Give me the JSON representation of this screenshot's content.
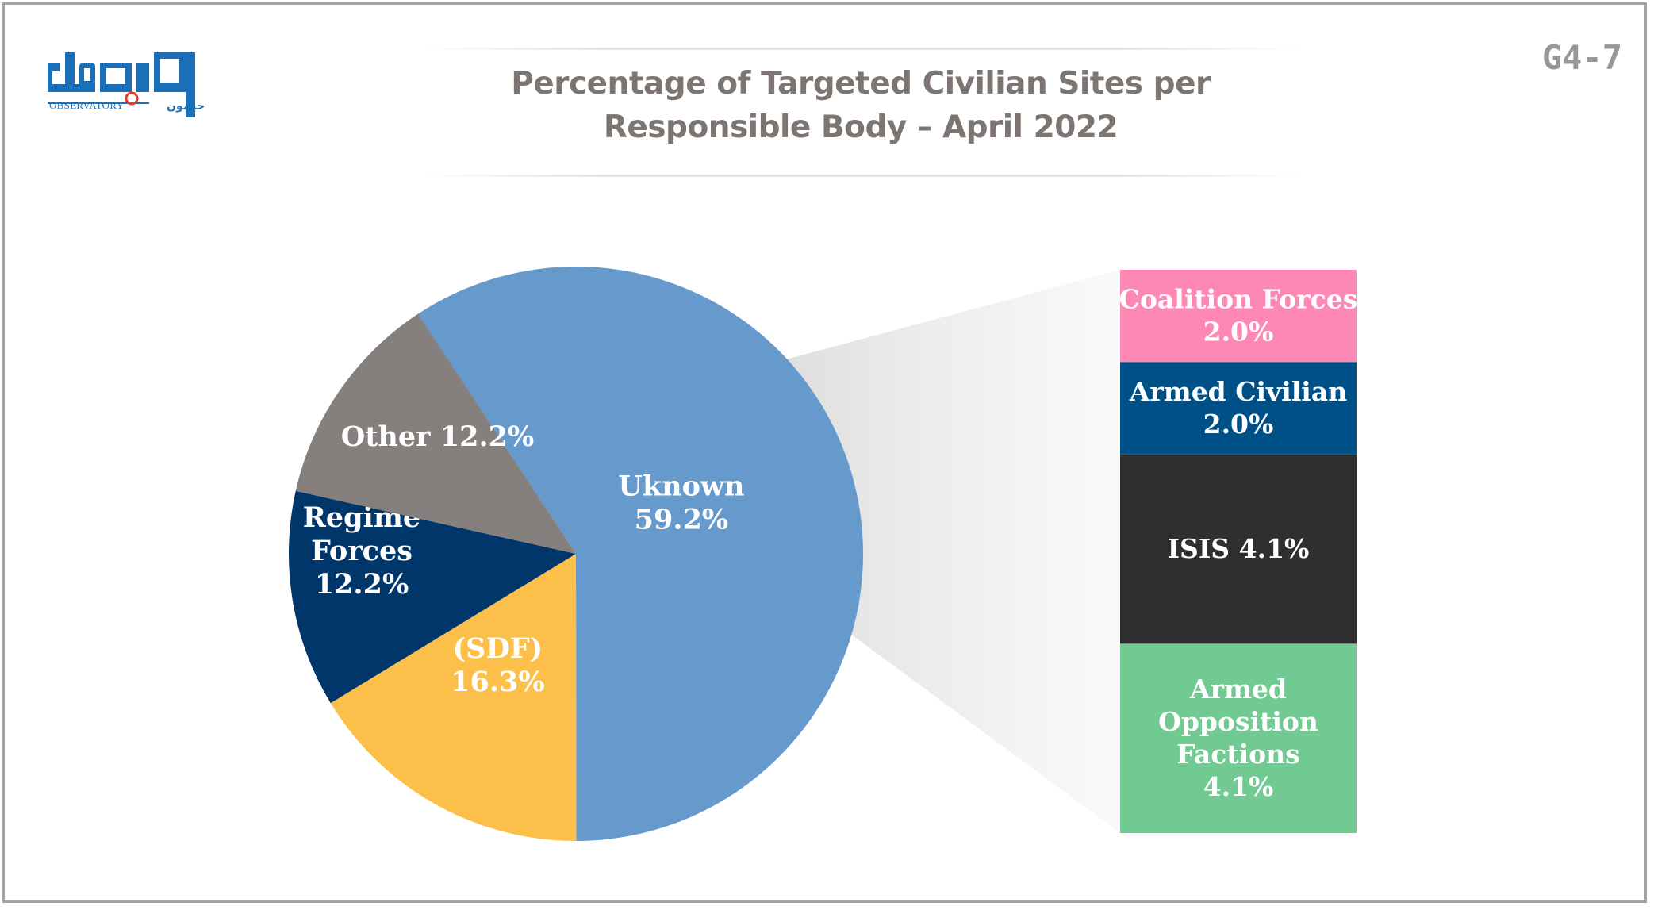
{
  "header": {
    "title_line1": "Percentage of Targeted Civilian Sites per",
    "title_line2": "Responsible Body – April 2022",
    "doc_code": "G4-7",
    "logo_text": "OBSERVATORY",
    "logo_arabic": "مرصد حرمون"
  },
  "colors": {
    "unknown": "#6699cc",
    "sdf": "#fcc04a",
    "regime": "#00366a",
    "other": "#857f7d",
    "coalition": "#fe88b4",
    "armed_civilian": "#005088",
    "isis": "#2f2f2f",
    "opposition": "#70ca92",
    "logo": "#1b6fb7"
  },
  "chart_data": {
    "type": "pie",
    "title": "Percentage of Targeted Civilian Sites per Responsible Body – April 2022",
    "slices": [
      {
        "key": "unknown",
        "name": "Uknown",
        "value": 59.2,
        "label_lines": [
          "Uknown",
          "59.2%"
        ]
      },
      {
        "key": "sdf",
        "name": "(SDF)",
        "value": 16.3,
        "label_lines": [
          "(SDF)",
          "16.3%"
        ]
      },
      {
        "key": "regime",
        "name": "Regime Forces",
        "value": 12.2,
        "label_lines": [
          "Regime",
          "Forces",
          "12.2%"
        ]
      },
      {
        "key": "other",
        "name": "Other",
        "value": 12.2,
        "label_lines": [
          "Other 12.2%"
        ]
      }
    ],
    "breakdown_of": "Other",
    "breakdown": [
      {
        "key": "coalition",
        "name": "Coalition Forces",
        "value": 2.0,
        "label_lines": [
          "Coalition Forces",
          "2.0%"
        ]
      },
      {
        "key": "armed_civilian",
        "name": "Armed Civilian",
        "value": 2.0,
        "label_lines": [
          "Armed Civilian",
          "2.0%"
        ]
      },
      {
        "key": "isis",
        "name": "ISIS",
        "value": 4.1,
        "label_lines": [
          "ISIS 4.1%"
        ]
      },
      {
        "key": "opposition",
        "name": "Armed Opposition Factions",
        "value": 4.1,
        "label_lines": [
          "Armed",
          "Opposition",
          "Factions",
          "4.1%"
        ]
      }
    ]
  }
}
